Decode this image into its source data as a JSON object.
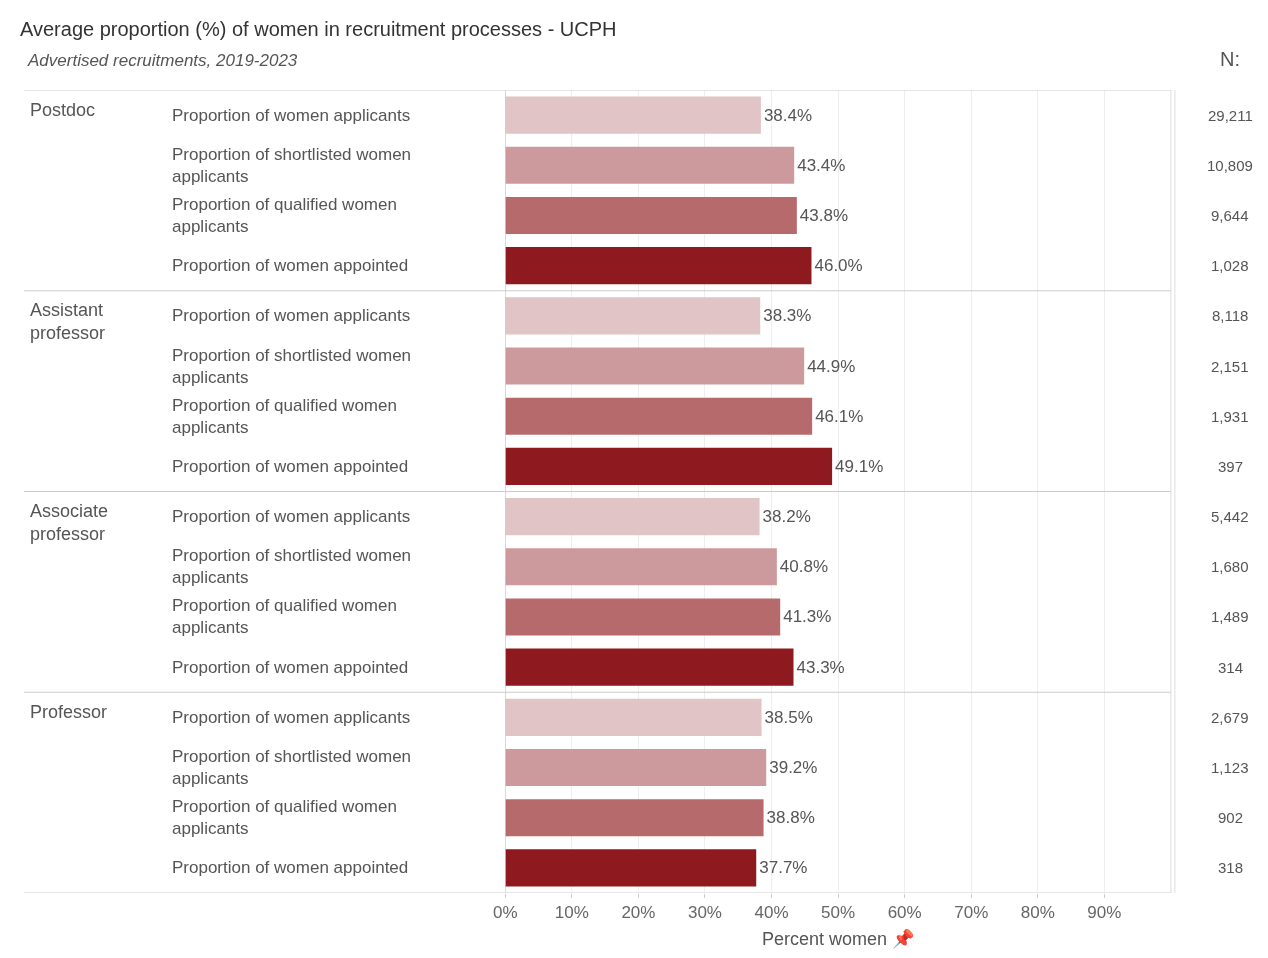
{
  "chart_data": {
    "type": "bar",
    "orientation": "horizontal",
    "title": "Average proportion (%) of women in recruitment processes - UCPH",
    "subtitle": "Advertised recruitments, 2019-2023",
    "xlabel": "Percent women 📌",
    "categories": [
      "Proportion of women applicants",
      "Proportion of shortlisted women applicants",
      "Proportion of qualified women applicants",
      "Proportion of women appointed",
      "Proportion of women applicants",
      "Proportion of shortlisted women applicants",
      "Proportion of qualified women applicants",
      "Proportion of women appointed",
      "Proportion of women applicants",
      "Proportion of shortlisted women applicants",
      "Proportion of qualified women applicants",
      "Proportion of women appointed",
      "Proportion of women applicants",
      "Proportion of shortlisted women applicants",
      "Proportion of qualified women applicants",
      "Proportion of women appointed"
    ],
    "values": [
      38.4,
      43.4,
      43.8,
      46.0,
      38.3,
      44.9,
      46.1,
      49.1,
      38.2,
      40.8,
      41.3,
      43.3,
      38.5,
      39.2,
      38.8,
      37.7
    ],
    "value_labels": [
      "38.4%",
      "43.4%",
      "43.8%",
      "46.0%",
      "38.3%",
      "44.9%",
      "46.1%",
      "49.1%",
      "38.2%",
      "40.8%",
      "41.3%",
      "43.3%",
      "38.5%",
      "39.2%",
      "38.8%",
      "37.7%"
    ],
    "colors": [
      "#e0c4c6",
      "#cc9a9c",
      "#b76a6c",
      "#8e1a1f",
      "#e0c4c6",
      "#cc9a9c",
      "#b76a6c",
      "#8e1a1f",
      "#e0c4c6",
      "#cc9a9c",
      "#b76a6c",
      "#8e1a1f",
      "#e0c4c6",
      "#cc9a9c",
      "#b76a6c",
      "#8e1a1f"
    ],
    "xlim": [
      0,
      100
    ],
    "xticks": [
      {
        "value": 0,
        "label": "0%"
      },
      {
        "value": 10,
        "label": "10%"
      },
      {
        "value": 20,
        "label": "20%"
      },
      {
        "value": 30,
        "label": "30%"
      },
      {
        "value": 40,
        "label": "40%"
      },
      {
        "value": 50,
        "label": "50%"
      },
      {
        "value": 60,
        "label": "60%"
      },
      {
        "value": 70,
        "label": "70%"
      },
      {
        "value": 80,
        "label": "80%"
      },
      {
        "value": 90,
        "label": "90%"
      }
    ],
    "grid": "x",
    "annotations": [
      "Postdoc",
      "Assistant professor",
      "Associate professor",
      "Professor",
      "N:",
      "29,211",
      "10,809",
      "9,644",
      "1,028",
      "8,118",
      "2,151",
      "1,931",
      "397",
      "5,442",
      "1,680",
      "1,489",
      "314",
      "2,679",
      "1,123",
      "902",
      "318"
    ]
  }
}
